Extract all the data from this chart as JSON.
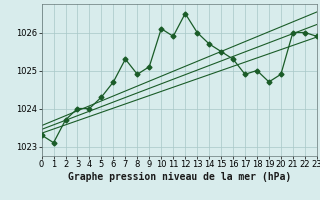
{
  "title": "Graphe pression niveau de la mer (hPa)",
  "background_color": "#d8ecec",
  "grid_color": "#a8c8c8",
  "line_color": "#1a5c28",
  "x_values": [
    0,
    1,
    2,
    3,
    4,
    5,
    6,
    7,
    8,
    9,
    10,
    11,
    12,
    13,
    14,
    15,
    16,
    17,
    18,
    19,
    20,
    21,
    22,
    23
  ],
  "y_main": [
    1023.3,
    1023.1,
    1023.7,
    1024.0,
    1024.0,
    1024.3,
    1024.7,
    1025.3,
    1024.9,
    1025.1,
    1026.1,
    1025.9,
    1026.5,
    1026.0,
    1025.7,
    1025.5,
    1025.3,
    1024.9,
    1025.0,
    1024.7,
    1024.9,
    1026.0,
    1026.0,
    1025.9
  ],
  "y_linear1": [
    1023.55,
    1023.68,
    1023.81,
    1023.94,
    1024.07,
    1024.2,
    1024.33,
    1024.46,
    1024.59,
    1024.72,
    1024.85,
    1024.98,
    1025.11,
    1025.24,
    1025.37,
    1025.5,
    1025.63,
    1025.76,
    1025.89,
    1026.02,
    1026.15,
    1026.28,
    1026.41,
    1026.54
  ],
  "y_linear2": [
    1023.45,
    1023.57,
    1023.69,
    1023.81,
    1023.93,
    1024.05,
    1024.17,
    1024.29,
    1024.41,
    1024.53,
    1024.65,
    1024.77,
    1024.89,
    1025.01,
    1025.13,
    1025.25,
    1025.37,
    1025.49,
    1025.61,
    1025.73,
    1025.85,
    1025.97,
    1026.09,
    1026.21
  ],
  "y_linear3": [
    1023.35,
    1023.46,
    1023.57,
    1023.68,
    1023.79,
    1023.9,
    1024.01,
    1024.12,
    1024.23,
    1024.34,
    1024.45,
    1024.56,
    1024.67,
    1024.78,
    1024.89,
    1025.0,
    1025.11,
    1025.22,
    1025.33,
    1025.44,
    1025.55,
    1025.66,
    1025.77,
    1025.88
  ],
  "xlim": [
    0,
    23
  ],
  "ylim": [
    1022.75,
    1026.75
  ],
  "yticks": [
    1023,
    1024,
    1025,
    1026
  ],
  "xticks": [
    0,
    1,
    2,
    3,
    4,
    5,
    6,
    7,
    8,
    9,
    10,
    11,
    12,
    13,
    14,
    15,
    16,
    17,
    18,
    19,
    20,
    21,
    22,
    23
  ],
  "tick_fontsize": 6,
  "title_fontsize": 7,
  "marker_size": 2.5,
  "linewidth": 0.9,
  "trend_linewidth": 0.8
}
